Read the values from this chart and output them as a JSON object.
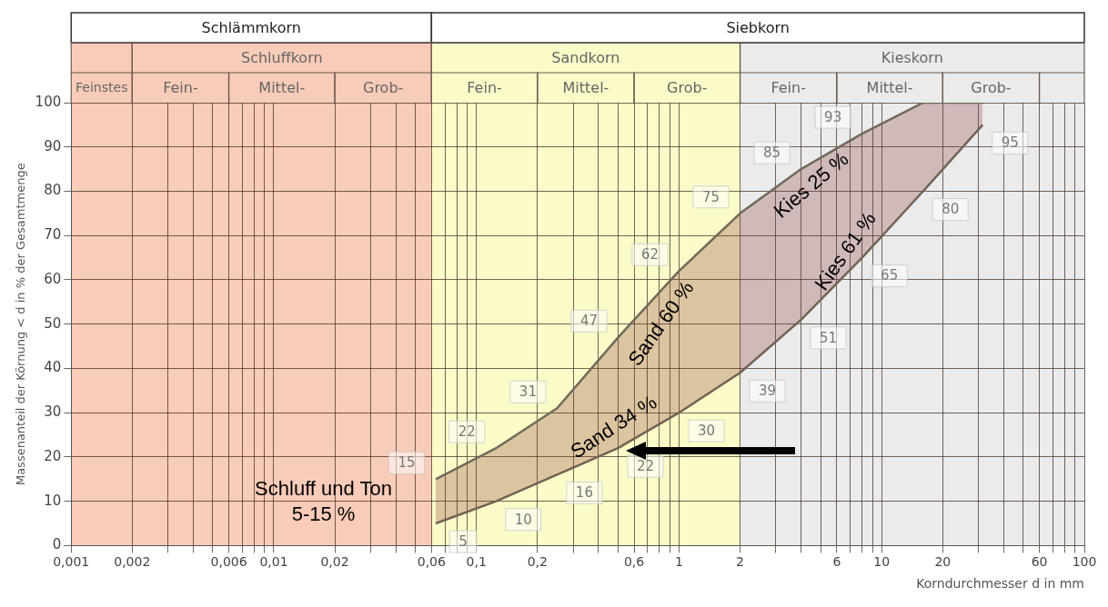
{
  "chart_data": {
    "type": "line",
    "xlabel": "Korndurchmesser d in mm",
    "ylabel": "Massenanteil der Körnung < d in % der Gesamtmenge",
    "x": [
      0.063,
      0.125,
      0.25,
      0.5,
      1,
      2,
      4,
      8,
      16,
      31.5
    ],
    "series": [
      {
        "color": "#6f6a5a",
        "values": [
          15,
          22,
          31,
          47,
          62,
          75,
          85,
          93,
          100,
          100
        ],
        "value_labels": [
          "15",
          "22",
          "31",
          "47",
          "62",
          "75",
          "85",
          "93",
          null,
          null
        ]
      },
      {
        "color": "#6f6a5a",
        "values": [
          5,
          10,
          16,
          22,
          30,
          39,
          51,
          65,
          80,
          95
        ],
        "value_labels": [
          "5",
          "10",
          "16",
          "22",
          "30",
          "39",
          "51",
          "65",
          "80",
          "95"
        ]
      }
    ],
    "log": "x",
    "xlim": [
      0.001,
      100
    ],
    "ylim": [
      0,
      100
    ],
    "xticks": [
      {
        "value": 0.001,
        "label": "0,001"
      },
      {
        "value": 0.002,
        "label": "0,002"
      },
      {
        "value": 0.003,
        "label": null
      },
      {
        "value": 0.004,
        "label": null
      },
      {
        "value": 0.005,
        "label": null
      },
      {
        "value": 0.006,
        "label": "0,006"
      },
      {
        "value": 0.007,
        "label": null
      },
      {
        "value": 0.008,
        "label": null
      },
      {
        "value": 0.009,
        "label": null
      },
      {
        "value": 0.01,
        "label": "0,01"
      },
      {
        "value": 0.02,
        "label": "0,02"
      },
      {
        "value": 0.03,
        "label": null
      },
      {
        "value": 0.04,
        "label": null
      },
      {
        "value": 0.05,
        "label": null
      },
      {
        "value": 0.06,
        "label": "0,06"
      },
      {
        "value": 0.07,
        "label": null
      },
      {
        "value": 0.08,
        "label": null
      },
      {
        "value": 0.09,
        "label": null
      },
      {
        "value": 0.1,
        "label": "0,1"
      },
      {
        "value": 0.2,
        "label": "0,2"
      },
      {
        "value": 0.3,
        "label": null
      },
      {
        "value": 0.4,
        "label": null
      },
      {
        "value": 0.5,
        "label": null
      },
      {
        "value": 0.6,
        "label": "0,6"
      },
      {
        "value": 0.7,
        "label": null
      },
      {
        "value": 0.8,
        "label": null
      },
      {
        "value": 0.9,
        "label": null
      },
      1,
      2,
      {
        "value": 3,
        "label": null
      },
      {
        "value": 4,
        "label": null
      },
      {
        "value": 5,
        "label": null
      },
      6,
      {
        "value": 7,
        "label": null
      },
      {
        "value": 8,
        "label": null
      },
      {
        "value": 9,
        "label": null
      },
      10,
      20,
      {
        "value": 30,
        "label": null
      },
      {
        "value": 40,
        "label": null
      },
      {
        "value": 50,
        "label": null
      },
      60,
      {
        "value": 70,
        "label": null
      },
      {
        "value": 80,
        "label": null
      },
      {
        "value": 90,
        "label": null
      },
      100
    ],
    "yticks": [
      0,
      10,
      20,
      30,
      40,
      50,
      60,
      70,
      80,
      90,
      100
    ],
    "grid": true,
    "legend": false,
    "marker": "none",
    "line_style": "solid",
    "bands": [
      {
        "axis": "x",
        "from": 0.001,
        "to": 0.06,
        "label": "Schlämmkorn",
        "color": "#f9cbb9"
      },
      {
        "axis": "x",
        "from": 0.06,
        "to": 2,
        "label": "Sandkorn",
        "color": "#fbfbc8"
      },
      {
        "axis": "x",
        "from": 2,
        "to": 100,
        "label": "Kieskorn",
        "color": "#ebebeb"
      }
    ],
    "annotations": [
      "Siebkorn",
      "Schluffkorn",
      "Feinstes",
      "Fein-",
      "Mittel-",
      "Grob-",
      "Fein-",
      "Mittel-",
      "Grob-",
      "Fein-",
      "Mittel-",
      "Grob-",
      "Schluff und Ton\n5-15 %",
      "Sand 60 %",
      "Sand 34 %",
      "Kies 25 %",
      "Kies 61 %"
    ]
  }
}
